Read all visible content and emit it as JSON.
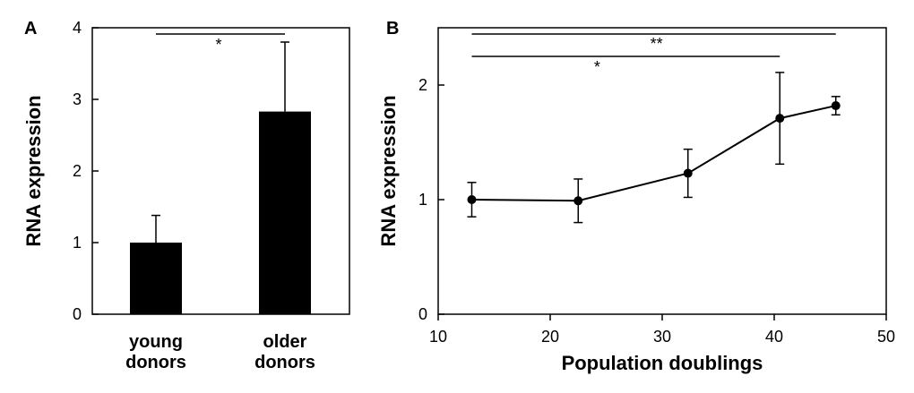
{
  "chart_data": [
    {
      "panel": "A",
      "type": "bar",
      "categories": [
        [
          "young",
          "donors"
        ],
        [
          "older",
          "donors"
        ]
      ],
      "values": [
        1.0,
        2.83
      ],
      "errors": [
        0.38,
        0.97
      ],
      "ylabel": "RNA expression",
      "xlabel": "",
      "ylim": [
        0,
        4
      ],
      "yticks": [
        0,
        1,
        2,
        3,
        4
      ],
      "bar_color": "#000000",
      "significance": [
        {
          "from": 0,
          "to": 1,
          "label": "*"
        }
      ]
    },
    {
      "panel": "B",
      "type": "line",
      "x": [
        13,
        22.5,
        32.3,
        40.5,
        45.5
      ],
      "y": [
        1.0,
        0.99,
        1.23,
        1.71,
        1.82
      ],
      "errors": [
        0.15,
        0.19,
        0.21,
        0.4,
        0.08
      ],
      "xlabel": "Population doublings",
      "ylabel": "RNA expression",
      "xlim": [
        10,
        50
      ],
      "ylim": [
        0,
        2.5
      ],
      "xticks": [
        10,
        20,
        30,
        40,
        50
      ],
      "yticks": [
        0,
        1,
        2
      ],
      "line_color": "#000000",
      "significance": [
        {
          "from": 13,
          "to": 45.5,
          "label": "**"
        },
        {
          "from": 13,
          "to": 40.5,
          "label": "*"
        }
      ]
    }
  ]
}
